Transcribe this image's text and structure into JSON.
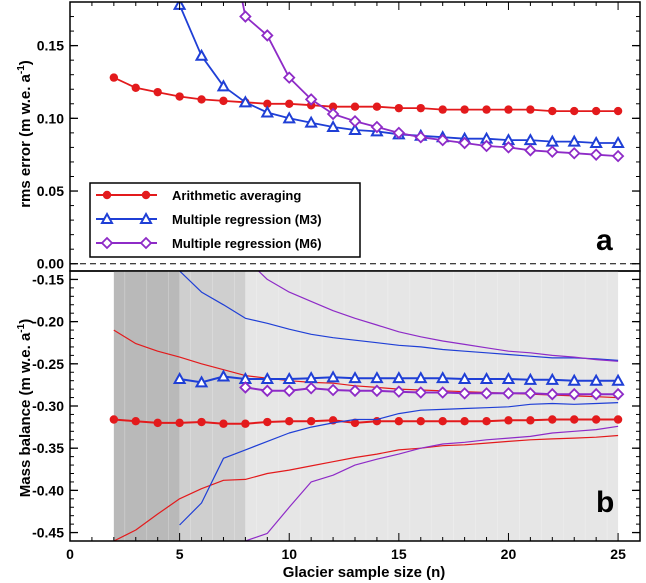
{
  "chart_data": [
    {
      "type": "line",
      "panel_label": "a",
      "ylabel": "rms error (m w.e. a⁻¹)",
      "xlim": [
        0,
        26
      ],
      "ylim": [
        -0.005,
        0.18
      ],
      "yticks": [
        "0.00",
        "0.05",
        "0.10",
        "0.15"
      ],
      "ytick_values": [
        0.0,
        0.05,
        0.1,
        0.15
      ],
      "reference_line": 0.0,
      "legend": "inside lower-left",
      "series": [
        {
          "name": "Arithmetic averaging",
          "color": "#e31a1c",
          "marker": "circle",
          "x": [
            2,
            3,
            4,
            5,
            6,
            7,
            8,
            9,
            10,
            11,
            12,
            13,
            14,
            15,
            16,
            17,
            18,
            19,
            20,
            21,
            22,
            23,
            24,
            25
          ],
          "y": [
            0.128,
            0.121,
            0.118,
            0.115,
            0.113,
            0.112,
            0.111,
            0.11,
            0.11,
            0.109,
            0.108,
            0.108,
            0.108,
            0.107,
            0.107,
            0.106,
            0.106,
            0.106,
            0.106,
            0.106,
            0.105,
            0.105,
            0.105,
            0.105
          ]
        },
        {
          "name": "Multiple regression (M3)",
          "color": "#1f3fd6",
          "marker": "triangle",
          "x": [
            4.8,
            5,
            6,
            7,
            8,
            9,
            10,
            11,
            12,
            13,
            14,
            15,
            16,
            17,
            18,
            19,
            20,
            21,
            22,
            23,
            24,
            25
          ],
          "y": [
            0.185,
            0.178,
            0.143,
            0.122,
            0.111,
            0.104,
            0.1,
            0.097,
            0.094,
            0.092,
            0.091,
            0.089,
            0.088,
            0.087,
            0.086,
            0.086,
            0.085,
            0.085,
            0.084,
            0.084,
            0.083,
            0.083
          ]
        },
        {
          "name": "Multiple regression (M6)",
          "color": "#8e2bc7",
          "marker": "diamond",
          "x": [
            7.8,
            8,
            9,
            10,
            11,
            12,
            13,
            14,
            15,
            16,
            17,
            18,
            19,
            20,
            21,
            22,
            23,
            24,
            25
          ],
          "y": [
            0.185,
            0.17,
            0.157,
            0.128,
            0.113,
            0.103,
            0.098,
            0.094,
            0.09,
            0.087,
            0.085,
            0.083,
            0.081,
            0.08,
            0.078,
            0.077,
            0.076,
            0.075,
            0.074
          ]
        }
      ]
    },
    {
      "type": "line",
      "panel_label": "b",
      "xlabel": "Glacier sample size (n)",
      "ylabel": "Mass balance (m w.e. a⁻¹)",
      "xlim": [
        0,
        26
      ],
      "ylim": [
        -0.46,
        -0.14
      ],
      "xticks": [
        "0",
        "5",
        "10",
        "15",
        "20",
        "25"
      ],
      "xtick_values": [
        0,
        5,
        10,
        15,
        20,
        25
      ],
      "yticks": [
        "-0.15",
        "-0.20",
        "-0.25",
        "-0.30",
        "-0.35",
        "-0.40",
        "-0.45"
      ],
      "ytick_values": [
        -0.15,
        -0.2,
        -0.25,
        -0.3,
        -0.35,
        -0.4,
        -0.45
      ],
      "shaded_bands": [
        {
          "x_start": 2,
          "x_end": 5,
          "color": "#b9b9b9"
        },
        {
          "x_start": 5,
          "x_end": 8,
          "color": "#cfcfcf"
        },
        {
          "x_start": 8,
          "x_end": 25,
          "color": "#e6e6e6"
        }
      ],
      "series": [
        {
          "name": "Arithmetic averaging",
          "color": "#e31a1c",
          "marker": "circle",
          "x": [
            2,
            3,
            4,
            5,
            6,
            7,
            8,
            9,
            10,
            11,
            12,
            13,
            14,
            15,
            16,
            17,
            18,
            19,
            20,
            21,
            22,
            23,
            24,
            25
          ],
          "y": [
            -0.316,
            -0.318,
            -0.32,
            -0.32,
            -0.319,
            -0.321,
            -0.321,
            -0.319,
            -0.318,
            -0.318,
            -0.317,
            -0.32,
            -0.318,
            -0.318,
            -0.318,
            -0.318,
            -0.318,
            -0.318,
            -0.317,
            -0.317,
            -0.316,
            -0.316,
            -0.316,
            -0.316
          ]
        },
        {
          "name": "Arithmetic averaging range",
          "color": "#e31a1c",
          "x_upper": [
            2,
            3,
            4,
            5,
            6,
            7,
            8,
            9,
            10,
            11,
            12,
            13,
            14,
            15,
            16,
            17,
            18,
            19,
            20,
            21,
            22,
            23,
            24,
            25
          ],
          "upper": [
            -0.21,
            -0.226,
            -0.235,
            -0.242,
            -0.25,
            -0.257,
            -0.264,
            -0.267,
            -0.27,
            -0.272,
            -0.273,
            -0.276,
            -0.278,
            -0.28,
            -0.281,
            -0.282,
            -0.283,
            -0.284,
            -0.285,
            -0.286,
            -0.287,
            -0.288,
            -0.289,
            -0.29
          ],
          "lower": [
            -0.46,
            -0.447,
            -0.428,
            -0.41,
            -0.398,
            -0.388,
            -0.387,
            -0.38,
            -0.376,
            -0.371,
            -0.366,
            -0.361,
            -0.357,
            -0.352,
            -0.35,
            -0.347,
            -0.346,
            -0.344,
            -0.342,
            -0.34,
            -0.339,
            -0.338,
            -0.337,
            -0.335
          ]
        },
        {
          "name": "Multiple regression (M3)",
          "color": "#1f3fd6",
          "marker": "triangle",
          "x": [
            5,
            6,
            7,
            8,
            9,
            10,
            11,
            12,
            13,
            14,
            15,
            16,
            17,
            18,
            19,
            20,
            21,
            22,
            23,
            24,
            25
          ],
          "y": [
            -0.268,
            -0.272,
            -0.265,
            -0.268,
            -0.268,
            -0.268,
            -0.267,
            -0.266,
            -0.267,
            -0.267,
            -0.267,
            -0.267,
            -0.267,
            -0.268,
            -0.268,
            -0.268,
            -0.269,
            -0.269,
            -0.27,
            -0.27,
            -0.27
          ]
        },
        {
          "name": "Multiple regression (M3) range",
          "color": "#1f3fd6",
          "x_upper": [
            5,
            6,
            7,
            8,
            9,
            10,
            11,
            12,
            13,
            14,
            15,
            16,
            17,
            18,
            19,
            20,
            21,
            22,
            23,
            24,
            25
          ],
          "upper": [
            -0.14,
            -0.165,
            -0.18,
            -0.196,
            -0.202,
            -0.209,
            -0.215,
            -0.219,
            -0.222,
            -0.225,
            -0.228,
            -0.23,
            -0.233,
            -0.235,
            -0.237,
            -0.239,
            -0.241,
            -0.243,
            -0.243,
            -0.244,
            -0.246
          ],
          "lower": [
            -0.441,
            -0.415,
            -0.362,
            -0.352,
            -0.342,
            -0.332,
            -0.325,
            -0.32,
            -0.316,
            -0.316,
            -0.309,
            -0.305,
            -0.304,
            -0.303,
            -0.302,
            -0.301,
            -0.298,
            -0.297,
            -0.298,
            -0.297,
            -0.296
          ]
        },
        {
          "name": "Multiple regression (M6)",
          "color": "#8e2bc7",
          "marker": "diamond",
          "x": [
            8,
            9,
            10,
            11,
            12,
            13,
            14,
            15,
            16,
            17,
            18,
            19,
            20,
            21,
            22,
            23,
            24,
            25
          ],
          "y": [
            -0.278,
            -0.282,
            -0.282,
            -0.279,
            -0.281,
            -0.282,
            -0.282,
            -0.283,
            -0.284,
            -0.284,
            -0.285,
            -0.285,
            -0.285,
            -0.285,
            -0.286,
            -0.286,
            -0.286,
            -0.286
          ]
        },
        {
          "name": "Multiple regression (M6) range",
          "color": "#8e2bc7",
          "x_upper": [
            8.6,
            9,
            10,
            11,
            12,
            13,
            14,
            15,
            16,
            17,
            18,
            19,
            20,
            21,
            22,
            23,
            24,
            25
          ],
          "upper": [
            -0.14,
            -0.15,
            -0.165,
            -0.176,
            -0.187,
            -0.196,
            -0.204,
            -0.212,
            -0.218,
            -0.223,
            -0.227,
            -0.231,
            -0.235,
            -0.237,
            -0.24,
            -0.242,
            -0.245,
            -0.247
          ],
          "x_lower": [
            8,
            9,
            10,
            11,
            12,
            13,
            14,
            15,
            16,
            17,
            18,
            19,
            20,
            21,
            22,
            23,
            24,
            25
          ],
          "lower": [
            -0.46,
            -0.451,
            -0.42,
            -0.39,
            -0.382,
            -0.37,
            -0.363,
            -0.357,
            -0.35,
            -0.345,
            -0.343,
            -0.34,
            -0.338,
            -0.336,
            -0.332,
            -0.33,
            -0.328,
            -0.324
          ]
        }
      ]
    }
  ],
  "legend": {
    "items": [
      {
        "label": "Arithmetic averaging",
        "color": "#e31a1c",
        "marker": "circle"
      },
      {
        "label": "Multiple regression (M3)",
        "color": "#1f3fd6",
        "marker": "triangle"
      },
      {
        "label": "Multiple regression (M6)",
        "color": "#8e2bc7",
        "marker": "diamond"
      }
    ]
  },
  "labels": {
    "ylabel_a_main": "rms error (m w.e. a",
    "ylabel_a_sup": "-1",
    "ylabel_a_end": ")",
    "ylabel_b_main": "Mass balance (m w.e. a",
    "ylabel_b_sup": "-1",
    "ylabel_b_end": ")",
    "xlabel": "Glacier sample size (n)",
    "panel_a": "a",
    "panel_b": "b"
  }
}
